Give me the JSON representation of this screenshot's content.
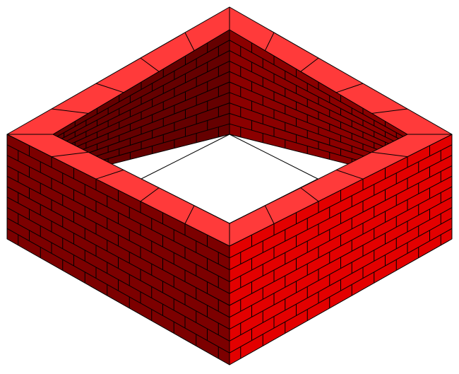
{
  "illustration": {
    "subject": "brick-enclosure",
    "colors": {
      "top_face": "#ff3a3a",
      "right_face": "#e30000",
      "left_face": "#7c0000",
      "inner_back_left_face": "#650000",
      "inner_back_right_face": "#8b0000",
      "mortar": "#000000",
      "background": "#ffffff"
    },
    "wall_courses": 10,
    "cap_blocks_per_side": 5
  }
}
